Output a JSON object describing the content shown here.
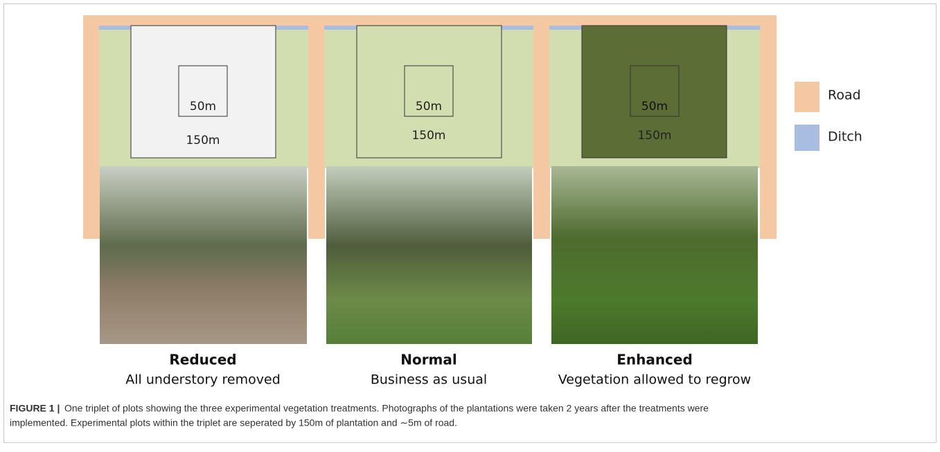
{
  "plots": [
    {
      "inner": "50m",
      "outer": "150m",
      "title": "Reduced",
      "subtitle": "All understory removed"
    },
    {
      "inner": "50m",
      "outer": "150m",
      "title": "Normal",
      "subtitle": "Business as usual"
    },
    {
      "inner": "50m",
      "outer": "150m",
      "title": "Enhanced",
      "subtitle": "Vegetation allowed to regrow"
    }
  ],
  "legend": [
    {
      "label": "Road"
    },
    {
      "label": "Ditch"
    }
  ],
  "caption": {
    "label": "FIGURE 1 |",
    "lines": [
      "One triplet of plots showing the three experimental vegetation treatments. Photographs of the plantations were taken 2 years after the treatments were",
      "implemented. Experimental plots within the triplet are seperated by 150m of plantation and ∼5m of road."
    ]
  }
}
